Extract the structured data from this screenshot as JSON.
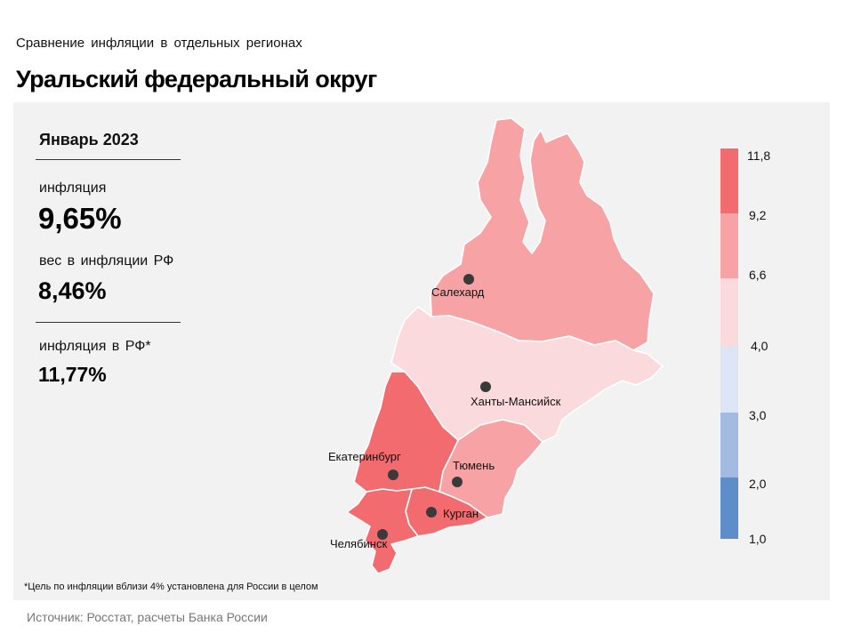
{
  "header": {
    "subtitle": "Сравнение  инфляции  в отдельных  регионах",
    "title": "Уральский федеральный округ"
  },
  "stats": {
    "period": "Январь 2023",
    "inflation_label": "инфляция",
    "inflation_value": "9,65%",
    "weight_label": "вес в инфляции  РФ",
    "weight_value": "8,46%",
    "rf_inflation_label": "инфляция  в РФ*",
    "rf_inflation_value": "11,77%"
  },
  "footnote": "*Цель по инфляции вблизи 4% установлена для России в целом",
  "source": "Источник: Росстат, расчеты Банка России",
  "cities": [
    "Салехард",
    "Ханты-Мансийск",
    "Екатеринбург",
    "Тюмень",
    "Курган",
    "Челябинск"
  ],
  "regions": [
    {
      "name": "Yamalo-Nenets AO",
      "class_index": 1,
      "color": "#f7a3a5"
    },
    {
      "name": "Khanty-Mansi AO",
      "class_index": 2,
      "color": "#fadadd"
    },
    {
      "name": "Tyumen Oblast",
      "class_index": 1,
      "color": "#f7a3a5"
    },
    {
      "name": "Sverdlovsk Oblast",
      "class_index": 0,
      "color": "#f26b6e"
    },
    {
      "name": "Kurgan Oblast",
      "class_index": 0,
      "color": "#f26b6e"
    },
    {
      "name": "Chelyabinsk Oblast",
      "class_index": 0,
      "color": "#f26b6e"
    }
  ],
  "legend": {
    "breaks": [
      "11,8",
      "9,2",
      "6,6",
      "4,0",
      "3,0",
      "2,0",
      "1,0"
    ],
    "colors": [
      "#f26b6e",
      "#f7a3a5",
      "#fadadd",
      "#dde5f4",
      "#a2badf",
      "#5e8ec9"
    ]
  }
}
